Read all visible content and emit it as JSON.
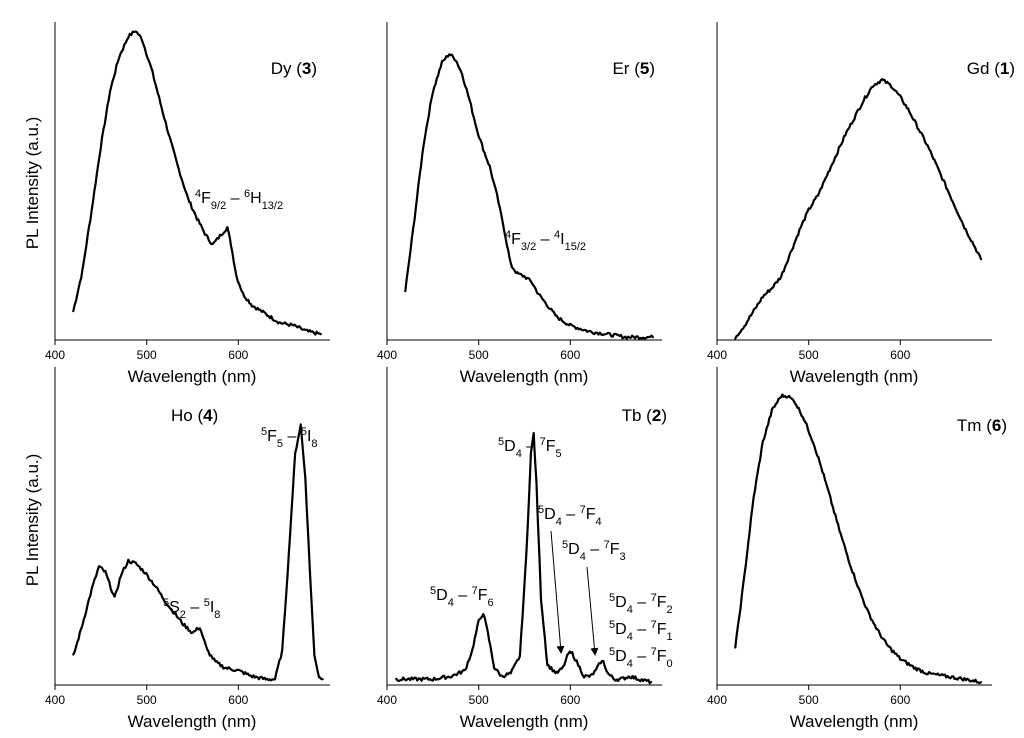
{
  "figure": {
    "shared_ylabel": "PL Intensity (a.u.)"
  },
  "chart_data": [
    {
      "type": "line",
      "title": "Dy (3)",
      "title_text": "Dy (",
      "title_num": "3",
      "xlabel": "Wavelength (nm)",
      "ylabel": "PL Intensity (a.u.)",
      "xlim": [
        390,
        690
      ],
      "ylim": [
        0,
        1.1
      ],
      "xticks": [
        400,
        500,
        600
      ],
      "series": [
        {
          "name": "Dy (3)",
          "x": [
            410,
            420,
            430,
            440,
            450,
            460,
            470,
            478,
            485,
            495,
            505,
            515,
            525,
            535,
            545,
            555,
            562,
            570,
            578,
            582,
            588,
            595,
            605,
            620,
            635,
            650,
            665,
            680
          ],
          "y": [
            0.1,
            0.24,
            0.45,
            0.67,
            0.86,
            0.98,
            1.05,
            1.07,
            1.04,
            0.94,
            0.82,
            0.7,
            0.59,
            0.49,
            0.42,
            0.36,
            0.33,
            0.36,
            0.39,
            0.33,
            0.22,
            0.16,
            0.12,
            0.09,
            0.06,
            0.05,
            0.03,
            0.02
          ]
        }
      ],
      "annotations": [
        {
          "label": "4F9/2 – 6H13/2",
          "x": 578,
          "y": 0.39
        }
      ]
    },
    {
      "type": "line",
      "title": "Er (5)",
      "title_text": "Er (",
      "title_num": "5",
      "xlabel": "Wavelength (nm)",
      "ylabel": "",
      "xlim": [
        390,
        690
      ],
      "ylim": [
        0,
        1.1
      ],
      "xticks": [
        400,
        500,
        600
      ],
      "series": [
        {
          "name": "Er (5)",
          "x": [
            410,
            420,
            430,
            440,
            450,
            458,
            465,
            472,
            480,
            488,
            495,
            502,
            510,
            518,
            525,
            532,
            540,
            548,
            555,
            565,
            575,
            590,
            610,
            630,
            650,
            665,
            680
          ],
          "y": [
            0.17,
            0.42,
            0.68,
            0.86,
            0.96,
            0.99,
            0.97,
            0.92,
            0.83,
            0.73,
            0.66,
            0.6,
            0.5,
            0.38,
            0.26,
            0.23,
            0.22,
            0.2,
            0.16,
            0.12,
            0.08,
            0.05,
            0.03,
            0.02,
            0.01,
            0.01,
            0.01
          ]
        }
      ],
      "annotations": [
        {
          "label": "4F3/2 – 4I15/2",
          "x": 540,
          "y": 0.22
        }
      ]
    },
    {
      "type": "line",
      "title": "Gd (1)",
      "title_text": "Gd (",
      "title_num": "1",
      "xlabel": "Wavelength (nm)",
      "ylabel": "",
      "xlim": [
        390,
        690
      ],
      "ylim": [
        0,
        1.1
      ],
      "xticks": [
        400,
        500,
        600
      ],
      "series": [
        {
          "name": "Gd (1)",
          "x": [
            410,
            420,
            430,
            440,
            450,
            460,
            470,
            480,
            490,
            500,
            510,
            520,
            530,
            540,
            550,
            560,
            570,
            580,
            590,
            600,
            610,
            620,
            630,
            640,
            650,
            660,
            670,
            678
          ],
          "y": [
            0.01,
            0.05,
            0.1,
            0.15,
            0.18,
            0.22,
            0.3,
            0.38,
            0.45,
            0.5,
            0.57,
            0.64,
            0.71,
            0.77,
            0.83,
            0.88,
            0.9,
            0.88,
            0.84,
            0.79,
            0.73,
            0.67,
            0.6,
            0.53,
            0.46,
            0.39,
            0.33,
            0.28
          ]
        }
      ],
      "annotations": []
    },
    {
      "type": "line",
      "title": "Ho (4)",
      "title_text": "Ho (",
      "title_num": "4",
      "xlabel": "Wavelength (nm)",
      "ylabel": "PL Intensity (a.u.)",
      "xlim": [
        390,
        690
      ],
      "ylim": [
        0,
        1.1
      ],
      "xticks": [
        400,
        500,
        600
      ],
      "series": [
        {
          "name": "Ho (4)",
          "x": [
            410,
            420,
            430,
            438,
            445,
            455,
            462,
            470,
            478,
            488,
            500,
            510,
            520,
            530,
            540,
            548,
            556,
            565,
            575,
            590,
            605,
            620,
            630,
            638,
            645,
            652,
            658,
            663,
            668,
            673,
            678,
            682
          ],
          "y": [
            0.1,
            0.21,
            0.33,
            0.41,
            0.39,
            0.3,
            0.38,
            0.43,
            0.42,
            0.39,
            0.34,
            0.29,
            0.25,
            0.21,
            0.18,
            0.2,
            0.12,
            0.08,
            0.06,
            0.05,
            0.03,
            0.02,
            0.02,
            0.12,
            0.45,
            0.8,
            0.9,
            0.72,
            0.4,
            0.1,
            0.03,
            0.02
          ]
        }
      ],
      "annotations": [
        {
          "label": "5S2 – 5I8",
          "x": 548,
          "y": 0.2
        },
        {
          "label": "5F5 – 5I8",
          "x": 658,
          "y": 0.9
        }
      ]
    },
    {
      "type": "line",
      "title": "Tb (2)",
      "title_text": "Tb (",
      "title_num": "2",
      "xlabel": "Wavelength (nm)",
      "ylabel": "",
      "xlim": [
        390,
        690
      ],
      "ylim": [
        0,
        1.1
      ],
      "xticks": [
        400,
        500,
        600
      ],
      "series": [
        {
          "name": "Tb (2)",
          "x": [
            400,
            420,
            440,
            460,
            475,
            483,
            490,
            495,
            500,
            507,
            515,
            525,
            535,
            542,
            547,
            550,
            553,
            558,
            565,
            575,
            582,
            588,
            592,
            597,
            605,
            612,
            618,
            623,
            626,
            631,
            638,
            645,
            655,
            665,
            678
          ],
          "y": [
            0.02,
            0.02,
            0.02,
            0.03,
            0.05,
            0.12,
            0.22,
            0.25,
            0.18,
            0.06,
            0.03,
            0.04,
            0.1,
            0.45,
            0.8,
            0.87,
            0.7,
            0.3,
            0.07,
            0.04,
            0.06,
            0.11,
            0.11,
            0.08,
            0.03,
            0.03,
            0.05,
            0.08,
            0.08,
            0.04,
            0.02,
            0.02,
            0.03,
            0.02,
            0.01
          ]
        }
      ],
      "annotations": [
        {
          "label": "5D4 – 7F6",
          "x": 495,
          "y": 0.25
        },
        {
          "label": "5D4 – 7F5",
          "x": 550,
          "y": 0.87
        },
        {
          "label": "5D4 – 7F4",
          "x": 590,
          "y": 0.11
        },
        {
          "label": "5D4 – 7F3",
          "x": 626,
          "y": 0.08
        },
        {
          "label": "5D4 – 7F2",
          "x": 650,
          "y": 0.03
        },
        {
          "label": "5D4 – 7F1",
          "x": 650,
          "y": 0.03
        },
        {
          "label": "5D4 – 7F0",
          "x": 650,
          "y": 0.03
        }
      ]
    },
    {
      "type": "line",
      "title": "Tm (6)",
      "title_text": "Tm (",
      "title_num": "6",
      "xlabel": "Wavelength (nm)",
      "ylabel": "",
      "xlim": [
        390,
        690
      ],
      "ylim": [
        0,
        1.1
      ],
      "xticks": [
        400,
        500,
        600
      ],
      "series": [
        {
          "name": "Tm (6)",
          "x": [
            410,
            420,
            430,
            440,
            450,
            460,
            467,
            475,
            485,
            495,
            505,
            515,
            525,
            535,
            545,
            555,
            565,
            575,
            590,
            605,
            620,
            640,
            660,
            678
          ],
          "y": [
            0.13,
            0.38,
            0.65,
            0.84,
            0.95,
            1.0,
            1.0,
            0.98,
            0.92,
            0.84,
            0.74,
            0.63,
            0.52,
            0.42,
            0.33,
            0.25,
            0.19,
            0.14,
            0.09,
            0.06,
            0.04,
            0.03,
            0.02,
            0.01
          ]
        }
      ],
      "annotations": []
    }
  ],
  "labels": {
    "dy": {
      "pre": "4",
      "a": "F",
      "sa": "9/2",
      "mid": " – ",
      "pre2": "6",
      "b": "H",
      "sb": "13/2"
    },
    "er": {
      "pre": "4",
      "a": "F",
      "sa": "3/2",
      "mid": " – ",
      "pre2": "4",
      "b": "I",
      "sb": "15/2"
    },
    "ho1": {
      "pre": "5",
      "a": "S",
      "sa": "2",
      "mid": " – ",
      "pre2": "5",
      "b": "I",
      "sb": "8"
    },
    "ho2": {
      "pre": "5",
      "a": "F",
      "sa": "5",
      "mid": " – ",
      "pre2": "5",
      "b": "I",
      "sb": "8"
    },
    "tb6": {
      "pre": "5",
      "a": "D",
      "sa": "4",
      "mid": " – ",
      "pre2": "7",
      "b": "F",
      "sb": "6"
    },
    "tb5": {
      "pre": "5",
      "a": "D",
      "sa": "4",
      "mid": " – ",
      "pre2": "7",
      "b": "F",
      "sb": "5"
    },
    "tb4": {
      "pre": "5",
      "a": "D",
      "sa": "4",
      "mid": " – ",
      "pre2": "7",
      "b": "F",
      "sb": "4"
    },
    "tb3": {
      "pre": "5",
      "a": "D",
      "sa": "4",
      "mid": " – ",
      "pre2": "7",
      "b": "F",
      "sb": "3"
    },
    "tb2": {
      "pre": "5",
      "a": "D",
      "sa": "4",
      "mid": " – ",
      "pre2": "7",
      "b": "F",
      "sb": "2"
    },
    "tb1": {
      "pre": "5",
      "a": "D",
      "sa": "4",
      "mid": " – ",
      "pre2": "7",
      "b": "F",
      "sb": "1"
    },
    "tb0": {
      "pre": "5",
      "a": "D",
      "sa": "4",
      "mid": " – ",
      "pre2": "7",
      "b": "F",
      "sb": "0"
    }
  }
}
